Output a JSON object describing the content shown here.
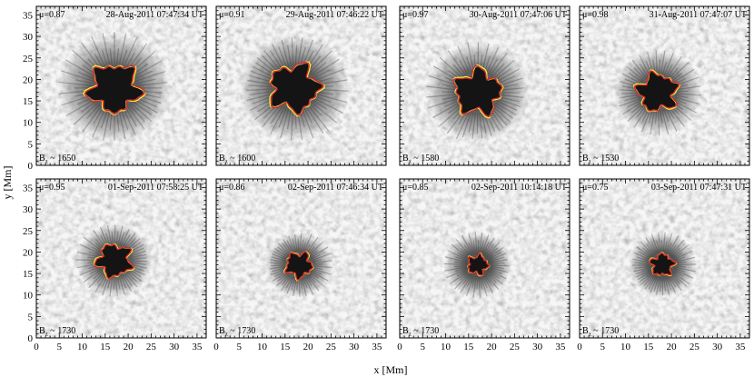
{
  "figure": {
    "xlabel": "x  [Mm]",
    "ylabel": "y  [Mm]",
    "mu_prefix": "μ=",
    "bz_prefix": "B",
    "bz_subscript": "z",
    "bz_joiner": " ~ "
  },
  "colors": {
    "umbra_contour": "#d9262a",
    "bz_contour": "#f2f03a",
    "frame": "#000000"
  },
  "chart_data": [
    {
      "type": "image",
      "mu": "0.87",
      "date": "28-Aug-2011 07:47:34 UT",
      "bz": "1650",
      "umbra_size": 1.0,
      "xlim": [
        0,
        37
      ],
      "ylim": [
        0,
        37
      ],
      "xticks": [
        0,
        5,
        10,
        15,
        20,
        25,
        30,
        35
      ],
      "yticks": [
        0,
        5,
        10,
        15,
        20,
        25,
        30,
        35
      ],
      "center": [
        17,
        18
      ]
    },
    {
      "type": "image",
      "mu": "0.91",
      "date": "29-Aug-2011 07:46:22 UT",
      "bz": "1600",
      "umbra_size": 0.98,
      "xlim": [
        0,
        37
      ],
      "ylim": [
        0,
        37
      ],
      "xticks": [
        0,
        5,
        10,
        15,
        20,
        25,
        30,
        35
      ],
      "yticks": [
        0,
        5,
        10,
        15,
        20,
        25,
        30,
        35
      ],
      "center": [
        17,
        18
      ]
    },
    {
      "type": "image",
      "mu": "0.97",
      "date": "30-Aug-2011 07:47:06 UT",
      "bz": "1580",
      "umbra_size": 0.92,
      "xlim": [
        0,
        37
      ],
      "ylim": [
        0,
        37
      ],
      "xticks": [
        0,
        5,
        10,
        15,
        20,
        25,
        30,
        35
      ],
      "yticks": [
        0,
        5,
        10,
        15,
        20,
        25,
        30,
        35
      ],
      "center": [
        17,
        17
      ]
    },
    {
      "type": "image",
      "mu": "0.98",
      "date": "31-Aug-2011 07:47:07 UT",
      "bz": "1530",
      "umbra_size": 0.78,
      "xlim": [
        0,
        37
      ],
      "ylim": [
        0,
        37
      ],
      "xticks": [
        0,
        5,
        10,
        15,
        20,
        25,
        30,
        35
      ],
      "yticks": [
        0,
        5,
        10,
        15,
        20,
        25,
        30,
        35
      ],
      "center": [
        17,
        17
      ]
    },
    {
      "type": "image",
      "mu": "0.95",
      "date": "01-Sep-2011 07:58:25 UT",
      "bz": "1730",
      "umbra_size": 0.68,
      "xlim": [
        0,
        37
      ],
      "ylim": [
        0,
        37
      ],
      "xticks": [
        0,
        5,
        10,
        15,
        20,
        25,
        30,
        35
      ],
      "yticks": [
        0,
        5,
        10,
        15,
        20,
        25,
        30,
        35
      ],
      "center": [
        17,
        18
      ]
    },
    {
      "type": "image",
      "mu": "0.86",
      "date": "02-Sep-2011 07:46:34 UT",
      "bz": "1730",
      "umbra_size": 0.52,
      "xlim": [
        0,
        37
      ],
      "ylim": [
        0,
        37
      ],
      "xticks": [
        0,
        5,
        10,
        15,
        20,
        25,
        30,
        35
      ],
      "yticks": [
        0,
        5,
        10,
        15,
        20,
        25,
        30,
        35
      ],
      "center": [
        18,
        17
      ]
    },
    {
      "type": "image",
      "mu": "0.85",
      "date": "02-Sep-2011 10:14:18 UT",
      "bz": "1730",
      "umbra_size": 0.4,
      "xlim": [
        0,
        37
      ],
      "ylim": [
        0,
        37
      ],
      "xticks": [
        0,
        5,
        10,
        15,
        20,
        25,
        30,
        35
      ],
      "yticks": [
        0,
        5,
        10,
        15,
        20,
        25,
        30,
        35
      ],
      "center": [
        17,
        17
      ]
    },
    {
      "type": "image",
      "mu": "0.75",
      "date": "03-Sep-2011 07:47:31 UT",
      "bz": "1730",
      "umbra_size": 0.45,
      "xlim": [
        0,
        37
      ],
      "ylim": [
        0,
        37
      ],
      "xticks": [
        0,
        5,
        10,
        15,
        20,
        25,
        30,
        35
      ],
      "yticks": [
        0,
        5,
        10,
        15,
        20,
        25,
        30,
        35
      ],
      "center": [
        18,
        17
      ]
    }
  ]
}
